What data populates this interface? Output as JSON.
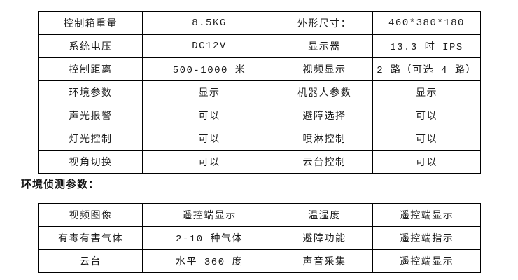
{
  "page": {
    "background_color": "#ffffff",
    "text_color": "#1c1c1c",
    "border_color": "#000000"
  },
  "section_heading": "环境侦测参数：",
  "spec_table": {
    "rows": [
      [
        "控制箱重量",
        "8.5KG",
        "外形尺寸：",
        "460*380*180"
      ],
      [
        "系统电压",
        "DC12V",
        "显示器",
        "13.3 吋 IPS"
      ],
      [
        "控制距离",
        "500-1000 米",
        "视频显示",
        "2 路（可选 4 路）"
      ],
      [
        "环境参数",
        "显示",
        "机器人参数",
        "显示"
      ],
      [
        "声光报警",
        "可以",
        "避障选择",
        "可以"
      ],
      [
        "灯光控制",
        "可以",
        "喷淋控制",
        "可以"
      ],
      [
        "视角切换",
        "可以",
        "云台控制",
        "可以"
      ]
    ]
  },
  "env_table": {
    "rows": [
      [
        "视频图像",
        "遥控端显示",
        "温湿度",
        "遥控端显示"
      ],
      [
        "有毒有害气体",
        "2-10 种气体",
        "避障功能",
        "遥控端指示"
      ],
      [
        "云台",
        "水平 360 度",
        "声音采集",
        "遥控端显示"
      ]
    ]
  }
}
